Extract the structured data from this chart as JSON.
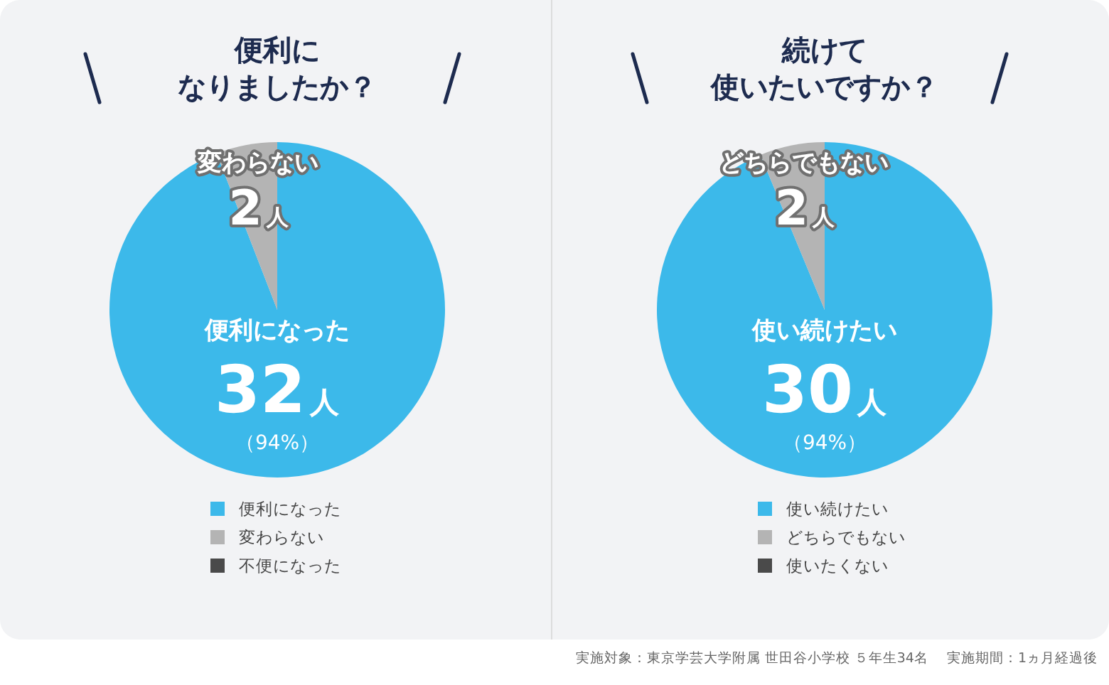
{
  "chart_data": [
    {
      "type": "pie",
      "title": "便利に",
      "subtitle": "なりましたか？",
      "categories": [
        "便利になった",
        "変わらない",
        "不便になった"
      ],
      "values": [
        32,
        2,
        0
      ],
      "colors": [
        "#3cb9ea",
        "#b4b4b4",
        "#4a4a4a"
      ],
      "value_labels": [
        "32人",
        "2人",
        null
      ],
      "legend": "bottom",
      "annotations": [
        "（94%）"
      ]
    },
    {
      "type": "pie",
      "title": "続けて",
      "subtitle": "使いたいですか？",
      "categories": [
        "使い続けたい",
        "どちらでもない",
        "使いたくない"
      ],
      "values": [
        30,
        2,
        0
      ],
      "colors": [
        "#3cb9ea",
        "#b4b4b4",
        "#4a4a4a"
      ],
      "value_labels": [
        "30人",
        "2人",
        null
      ],
      "legend": "bottom",
      "annotations": [
        "（94%）",
        "実施対象：東京学芸大学附属 世田谷小学校 ５年生34名　 実施期間：1ヵ月経過後"
      ]
    }
  ]
}
